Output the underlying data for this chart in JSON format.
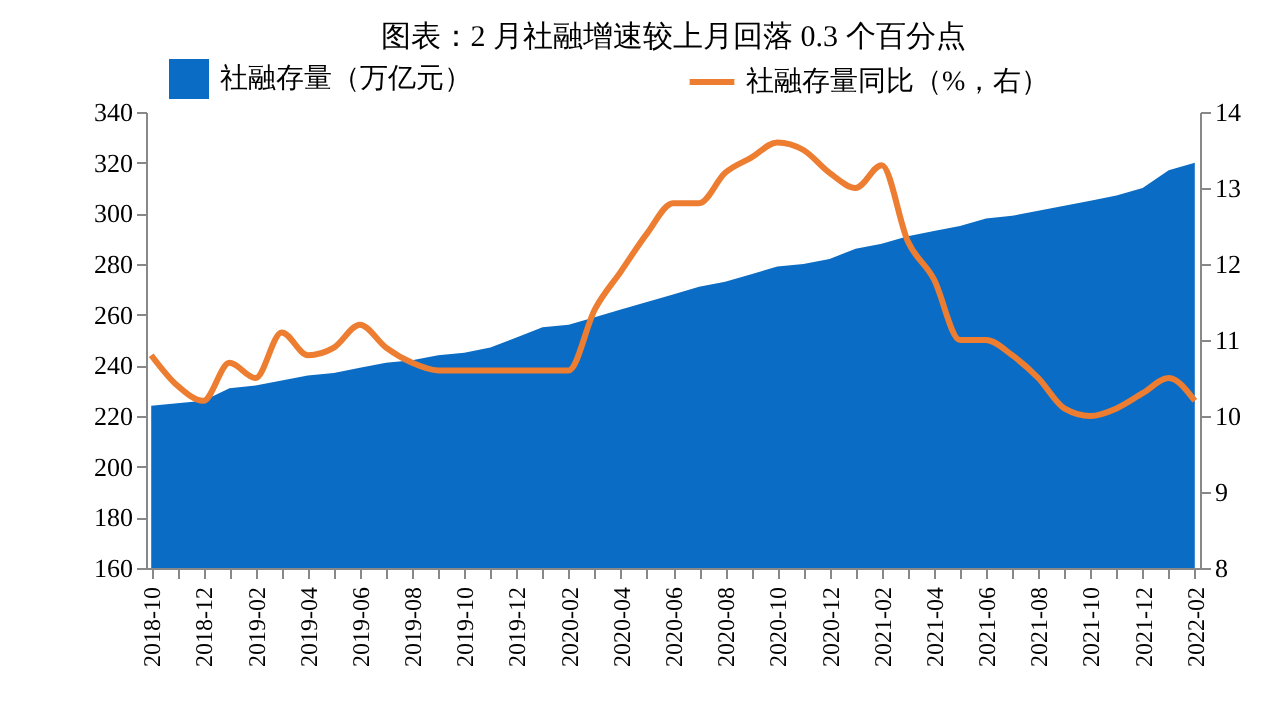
{
  "chart_data": {
    "type": "area",
    "title": "图表：2 月社融增速较上月回落 0.3 个百分点",
    "categories": [
      "2018-10",
      null,
      "2018-12",
      null,
      "2019-02",
      null,
      "2019-04",
      null,
      "2019-06",
      null,
      "2019-08",
      null,
      "2019-10",
      null,
      "2019-12",
      null,
      "2020-02",
      null,
      "2020-04",
      null,
      "2020-06",
      null,
      "2020-08",
      null,
      "2020-10",
      null,
      "2020-12",
      null,
      "2021-02",
      null,
      "2021-04",
      null,
      "2021-06",
      null,
      "2021-08",
      null,
      "2021-10",
      null,
      "2021-12",
      null,
      "2022-02"
    ],
    "series": [
      {
        "name": "社融存量（万亿元）",
        "color": "#0a6cc4",
        "values": [
          224,
          225,
          226,
          231,
          232,
          234,
          236,
          237,
          239,
          241,
          242,
          244,
          245,
          247,
          251,
          255,
          256,
          259,
          262,
          265,
          268,
          271,
          273,
          276,
          279,
          280,
          282,
          286,
          288,
          291,
          293,
          295,
          298,
          299,
          301,
          303,
          305,
          307,
          310,
          317,
          320
        ]
      },
      {
        "name": "社融存量同比（%，右）",
        "type": "line",
        "axis": "y2",
        "color": "#ed7d31",
        "values": [
          10.8,
          10.4,
          10.2,
          10.7,
          10.5,
          11.1,
          10.8,
          10.9,
          11.2,
          10.9,
          10.7,
          10.6,
          10.6,
          10.6,
          10.6,
          10.6,
          10.6,
          11.4,
          11.9,
          12.4,
          12.8,
          12.8,
          13.2,
          13.4,
          13.6,
          13.5,
          13.2,
          13.0,
          13.3,
          12.3,
          11.8,
          11.0,
          11.0,
          10.8,
          10.5,
          10.1,
          10.0,
          10.1,
          10.3,
          10.5,
          10.2
        ]
      }
    ],
    "ylim": [
      160,
      340
    ],
    "yticks": [
      160,
      180,
      200,
      220,
      240,
      260,
      280,
      300,
      320,
      340
    ],
    "y2lim": [
      8,
      14
    ],
    "y2ticks": [
      8,
      9,
      10,
      11,
      12,
      13,
      14
    ],
    "legend": "top",
    "grid": false
  }
}
